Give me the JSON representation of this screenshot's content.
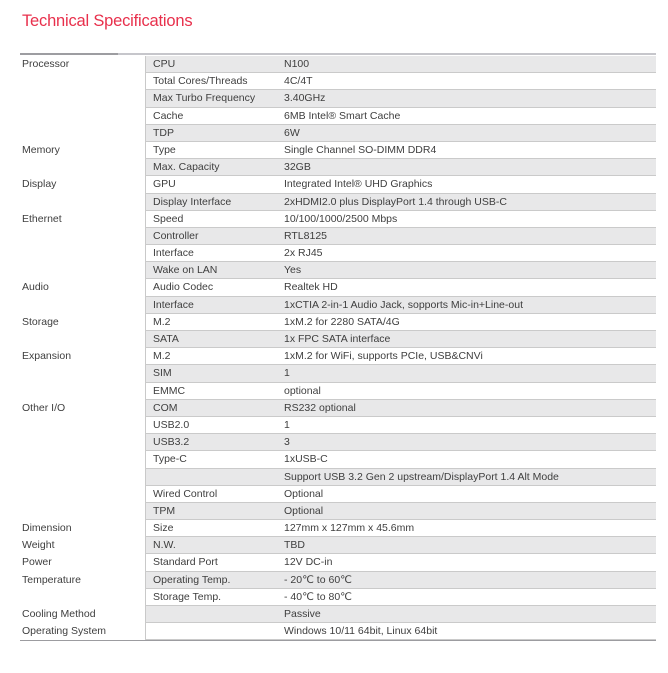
{
  "title": "Technical Specifications",
  "colors": {
    "accent_red": "#e8304c",
    "shaded_row_bg": "#e8e8e9",
    "row_border": "#cacaca",
    "header_rule_dark": "#9d9da1",
    "header_rule_light": "#c6c6cb",
    "bottom_rule": "#9c9ca0",
    "text": "#3e3e3e"
  },
  "table": {
    "rows": [
      {
        "category": "Processor",
        "label": "CPU",
        "value": "N100"
      },
      {
        "category": "",
        "label": "Total Cores/Threads",
        "value": "4C/4T"
      },
      {
        "category": "",
        "label": "Max Turbo Frequency",
        "value": "3.40GHz"
      },
      {
        "category": "",
        "label": "Cache",
        "value": "6MB Intel® Smart Cache"
      },
      {
        "category": "",
        "label": "TDP",
        "value": "6W"
      },
      {
        "category": "Memory",
        "label": "Type",
        "value": "Single Channel SO-DIMM DDR4"
      },
      {
        "category": "",
        "label": "Max. Capacity",
        "value": "32GB"
      },
      {
        "category": "Display",
        "label": "GPU",
        "value": "Integrated Intel® UHD Graphics"
      },
      {
        "category": "",
        "label": "Display Interface",
        "value": "2xHDMI2.0 plus DisplayPort 1.4 through USB-C"
      },
      {
        "category": "Ethernet",
        "label": "Speed",
        "value": "10/100/1000/2500 Mbps"
      },
      {
        "category": "",
        "label": "Controller",
        "value": "RTL8125"
      },
      {
        "category": "",
        "label": "Interface",
        "value": "2x RJ45"
      },
      {
        "category": "",
        "label": "Wake on LAN",
        "value": "Yes"
      },
      {
        "category": "Audio",
        "label": "Audio Codec",
        "value": "Realtek HD"
      },
      {
        "category": "",
        "label": "Interface",
        "value": "1xCTIA 2-in-1 Audio Jack, sopports Mic-in+Line-out"
      },
      {
        "category": "Storage",
        "label": "M.2",
        "value": "1xM.2 for 2280 SATA/4G"
      },
      {
        "category": "",
        "label": "SATA",
        "value": "1x FPC SATA interface"
      },
      {
        "category": "Expansion",
        "label": "M.2",
        "value": "1xM.2 for WiFi, supports PCIe, USB&CNVi"
      },
      {
        "category": "",
        "label": "SIM",
        "value": "1"
      },
      {
        "category": "",
        "label": "EMMC",
        "value": "optional"
      },
      {
        "category": "Other I/O",
        "label": "COM",
        "value": "RS232 optional"
      },
      {
        "category": "",
        "label": "USB2.0",
        "value": "1"
      },
      {
        "category": "",
        "label": "USB3.2",
        "value": "3"
      },
      {
        "category": "",
        "label": "Type-C",
        "value": "1xUSB-C"
      },
      {
        "category": "",
        "label": "",
        "value": "Support USB 3.2 Gen 2 upstream/DisplayPort 1.4 Alt Mode"
      },
      {
        "category": "",
        "label": "Wired Control",
        "value": "Optional"
      },
      {
        "category": "",
        "label": "TPM",
        "value": "Optional"
      },
      {
        "category": "Dimension",
        "label": "Size",
        "value": "127mm x 127mm x 45.6mm"
      },
      {
        "category": "Weight",
        "label": "N.W.",
        "value": "TBD"
      },
      {
        "category": "Power",
        "label": "Standard Port",
        "value": "12V DC-in"
      },
      {
        "category": "Temperature",
        "label": "Operating Temp.",
        "value": "- 20℃ to 60℃"
      },
      {
        "category": "",
        "label": "Storage Temp.",
        "value": "- 40℃ to 80℃"
      },
      {
        "category": "Cooling Method",
        "label": "",
        "value": "Passive"
      },
      {
        "category": "Operating System",
        "label": "",
        "value": "Windows 10/11 64bit, Linux 64bit"
      }
    ]
  }
}
